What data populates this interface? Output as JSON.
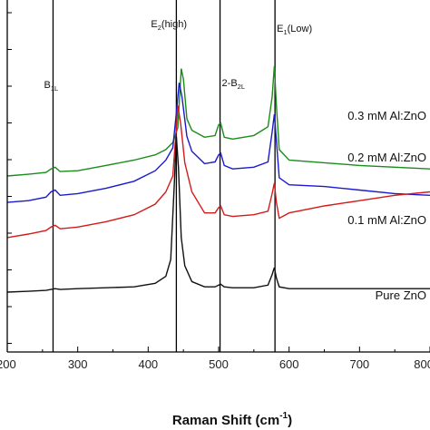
{
  "chart_data": {
    "type": "line",
    "xlabel": "Raman Shift (cm",
    "xlabel_sup": "-1",
    "xlabel_close": ")",
    "xlim": [
      200,
      800
    ],
    "xticks": [
      200,
      300,
      400,
      500,
      600,
      700,
      800
    ],
    "xtick_labels": [
      "200",
      "300",
      "400",
      "500",
      "600",
      "700",
      "800"
    ],
    "grid": false,
    "reference_lines": [
      {
        "x": 265,
        "label_main": "B",
        "label_sub": "1L"
      },
      {
        "x": 440,
        "label_main": "E",
        "label_sub": "2",
        "label_rest": "(high)"
      },
      {
        "x": 502,
        "label_main": "2-B",
        "label_sub": "2L"
      },
      {
        "x": 580,
        "label_main": "E",
        "label_sub": "1",
        "label_rest": "(Low)"
      }
    ],
    "series": [
      {
        "name": "0.3 mM Al:ZnO",
        "color": "#1a8c1a",
        "points": [
          [
            200,
            0.4
          ],
          [
            230,
            0.42
          ],
          [
            255,
            0.44
          ],
          [
            262,
            0.48
          ],
          [
            268,
            0.5
          ],
          [
            275,
            0.45
          ],
          [
            300,
            0.46
          ],
          [
            340,
            0.52
          ],
          [
            380,
            0.58
          ],
          [
            410,
            0.64
          ],
          [
            425,
            0.7
          ],
          [
            435,
            0.78
          ],
          [
            442,
            0.95
          ],
          [
            447,
            1.62
          ],
          [
            450,
            1.5
          ],
          [
            455,
            1.05
          ],
          [
            462,
            0.92
          ],
          [
            480,
            0.84
          ],
          [
            495,
            0.86
          ],
          [
            500,
            0.98
          ],
          [
            503,
            1.0
          ],
          [
            508,
            0.84
          ],
          [
            520,
            0.82
          ],
          [
            550,
            0.86
          ],
          [
            570,
            0.96
          ],
          [
            576,
            1.3
          ],
          [
            579,
            1.65
          ],
          [
            582,
            1.2
          ],
          [
            586,
            0.7
          ],
          [
            600,
            0.58
          ],
          [
            650,
            0.55
          ],
          [
            700,
            0.52
          ],
          [
            750,
            0.5
          ],
          [
            800,
            0.48
          ]
        ]
      },
      {
        "name": "0.2 mM Al:ZnO",
        "color": "#1a1acc",
        "points": [
          [
            200,
            0.1
          ],
          [
            230,
            0.12
          ],
          [
            255,
            0.16
          ],
          [
            262,
            0.22
          ],
          [
            268,
            0.24
          ],
          [
            275,
            0.18
          ],
          [
            300,
            0.2
          ],
          [
            340,
            0.26
          ],
          [
            380,
            0.34
          ],
          [
            410,
            0.46
          ],
          [
            425,
            0.58
          ],
          [
            435,
            0.72
          ],
          [
            441,
            1.2
          ],
          [
            444,
            1.46
          ],
          [
            448,
            1.3
          ],
          [
            455,
            0.85
          ],
          [
            462,
            0.68
          ],
          [
            480,
            0.54
          ],
          [
            495,
            0.56
          ],
          [
            500,
            0.64
          ],
          [
            503,
            0.66
          ],
          [
            508,
            0.52
          ],
          [
            520,
            0.48
          ],
          [
            550,
            0.5
          ],
          [
            570,
            0.56
          ],
          [
            576,
            0.9
          ],
          [
            579,
            1.1
          ],
          [
            582,
            0.8
          ],
          [
            586,
            0.38
          ],
          [
            600,
            0.3
          ],
          [
            650,
            0.28
          ],
          [
            700,
            0.24
          ],
          [
            750,
            0.2
          ],
          [
            800,
            0.18
          ]
        ]
      },
      {
        "name": "0.1 mM Al:ZnO",
        "color": "#d41a1a",
        "points": [
          [
            200,
            -0.3
          ],
          [
            230,
            -0.26
          ],
          [
            255,
            -0.22
          ],
          [
            262,
            -0.18
          ],
          [
            268,
            -0.16
          ],
          [
            275,
            -0.2
          ],
          [
            300,
            -0.18
          ],
          [
            340,
            -0.12
          ],
          [
            380,
            -0.04
          ],
          [
            410,
            0.08
          ],
          [
            425,
            0.22
          ],
          [
            435,
            0.4
          ],
          [
            440,
            0.95
          ],
          [
            442,
            1.2
          ],
          [
            446,
            1.0
          ],
          [
            452,
            0.55
          ],
          [
            462,
            0.22
          ],
          [
            480,
            -0.02
          ],
          [
            495,
            -0.02
          ],
          [
            500,
            0.04
          ],
          [
            503,
            0.06
          ],
          [
            508,
            -0.04
          ],
          [
            520,
            -0.06
          ],
          [
            550,
            -0.04
          ],
          [
            570,
            0.0
          ],
          [
            576,
            0.2
          ],
          [
            579,
            0.32
          ],
          [
            582,
            0.1
          ],
          [
            586,
            -0.08
          ],
          [
            600,
            -0.02
          ],
          [
            650,
            0.06
          ],
          [
            700,
            0.12
          ],
          [
            750,
            0.18
          ],
          [
            800,
            0.22
          ]
        ]
      },
      {
        "name": "Pure ZnO",
        "color": "#111111",
        "points": [
          [
            200,
            -0.92
          ],
          [
            230,
            -0.91
          ],
          [
            255,
            -0.9
          ],
          [
            262,
            -0.89
          ],
          [
            268,
            -0.88
          ],
          [
            275,
            -0.89
          ],
          [
            300,
            -0.88
          ],
          [
            340,
            -0.87
          ],
          [
            380,
            -0.86
          ],
          [
            410,
            -0.82
          ],
          [
            425,
            -0.74
          ],
          [
            432,
            -0.55
          ],
          [
            437,
            0.3
          ],
          [
            440,
            0.85
          ],
          [
            443,
            0.5
          ],
          [
            447,
            -0.3
          ],
          [
            452,
            -0.62
          ],
          [
            462,
            -0.8
          ],
          [
            480,
            -0.86
          ],
          [
            495,
            -0.86
          ],
          [
            500,
            -0.84
          ],
          [
            503,
            -0.83
          ],
          [
            508,
            -0.86
          ],
          [
            520,
            -0.87
          ],
          [
            550,
            -0.87
          ],
          [
            570,
            -0.84
          ],
          [
            576,
            -0.72
          ],
          [
            579,
            -0.64
          ],
          [
            582,
            -0.76
          ],
          [
            586,
            -0.86
          ],
          [
            600,
            -0.88
          ],
          [
            650,
            -0.88
          ],
          [
            700,
            -0.88
          ],
          [
            750,
            -0.88
          ],
          [
            800,
            -0.88
          ]
        ]
      }
    ]
  }
}
